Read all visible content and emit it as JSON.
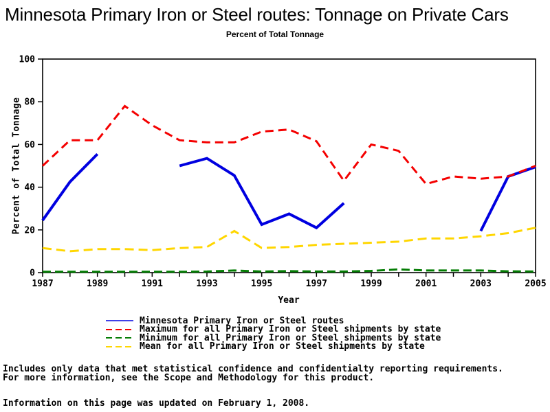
{
  "title": "Minnesota Primary Iron or Steel routes: Tonnage on Private Cars",
  "subtitle": "Percent of Total Tonnage",
  "footnotes": {
    "line1": "Includes only data that met statistical confidence and confidentialty reporting requirements.",
    "line2": "For more information, see the Scope and Methodology for this product.",
    "line3": "Information on this page was updated on February 1, 2008."
  },
  "colors": {
    "minnesota_blue": "#0000e0",
    "maximum_red": "#f40000",
    "minimum_green": "#047d04",
    "mean_yellow": "#ffd600",
    "axis_black": "#000000"
  },
  "chart_data": {
    "type": "line",
    "title": "Minnesota Primary Iron or Steel routes: Tonnage on Private Cars",
    "subtitle": "Percent of Total Tonnage",
    "xlabel": "Year",
    "ylabel": "Percent of Total Tonnage",
    "xlim": [
      1987,
      2005
    ],
    "ylim": [
      0,
      100
    ],
    "x": [
      1987,
      1988,
      1989,
      1990,
      1991,
      1992,
      1993,
      1994,
      1995,
      1996,
      1997,
      1998,
      1999,
      2000,
      2001,
      2002,
      2003,
      2004,
      2005
    ],
    "xtick_labels": [
      1987,
      1989,
      1991,
      1993,
      1995,
      1997,
      1999,
      2001,
      2003,
      2005
    ],
    "yticks": [
      0,
      20,
      40,
      60,
      80,
      100
    ],
    "grid": false,
    "legend_position": "bottom",
    "series": [
      {
        "name": "Minnesota Primary Iron or Steel routes",
        "color": "#0000e0",
        "width": 4,
        "dash": "",
        "values": [
          24.5,
          42.5,
          55.5,
          null,
          null,
          50,
          53.5,
          45.5,
          22.5,
          27.5,
          21,
          32.5,
          null,
          null,
          null,
          null,
          19.5,
          45,
          49.5
        ]
      },
      {
        "name": "Maximum for all Primary Iron or Steel shipments by state",
        "color": "#f40000",
        "width": 3,
        "dash": "12 7",
        "values": [
          50,
          62,
          62,
          78,
          69,
          62,
          61,
          61,
          66,
          67,
          61.5,
          43,
          60,
          57,
          41.5,
          45,
          44,
          45,
          50
        ]
      },
      {
        "name": "Minimum for all Primary Iron or Steel shipments by state",
        "color": "#047d04",
        "width": 3,
        "dash": "12 6",
        "values": [
          0.4,
          0.4,
          0.4,
          0.4,
          0.4,
          0.4,
          0.5,
          1,
          0.5,
          0.7,
          0.5,
          0.5,
          0.8,
          1.5,
          1,
          1,
          1,
          0.6,
          0.5
        ]
      },
      {
        "name": "Mean for all Primary Iron or Steel shipments by state",
        "color": "#ffd600",
        "width": 3,
        "dash": "13 7",
        "values": [
          11.5,
          10,
          11,
          11,
          10.5,
          11.5,
          12,
          19.5,
          11.5,
          12,
          13,
          13.5,
          14,
          14.5,
          16,
          16,
          17,
          18.5,
          21
        ]
      }
    ]
  }
}
